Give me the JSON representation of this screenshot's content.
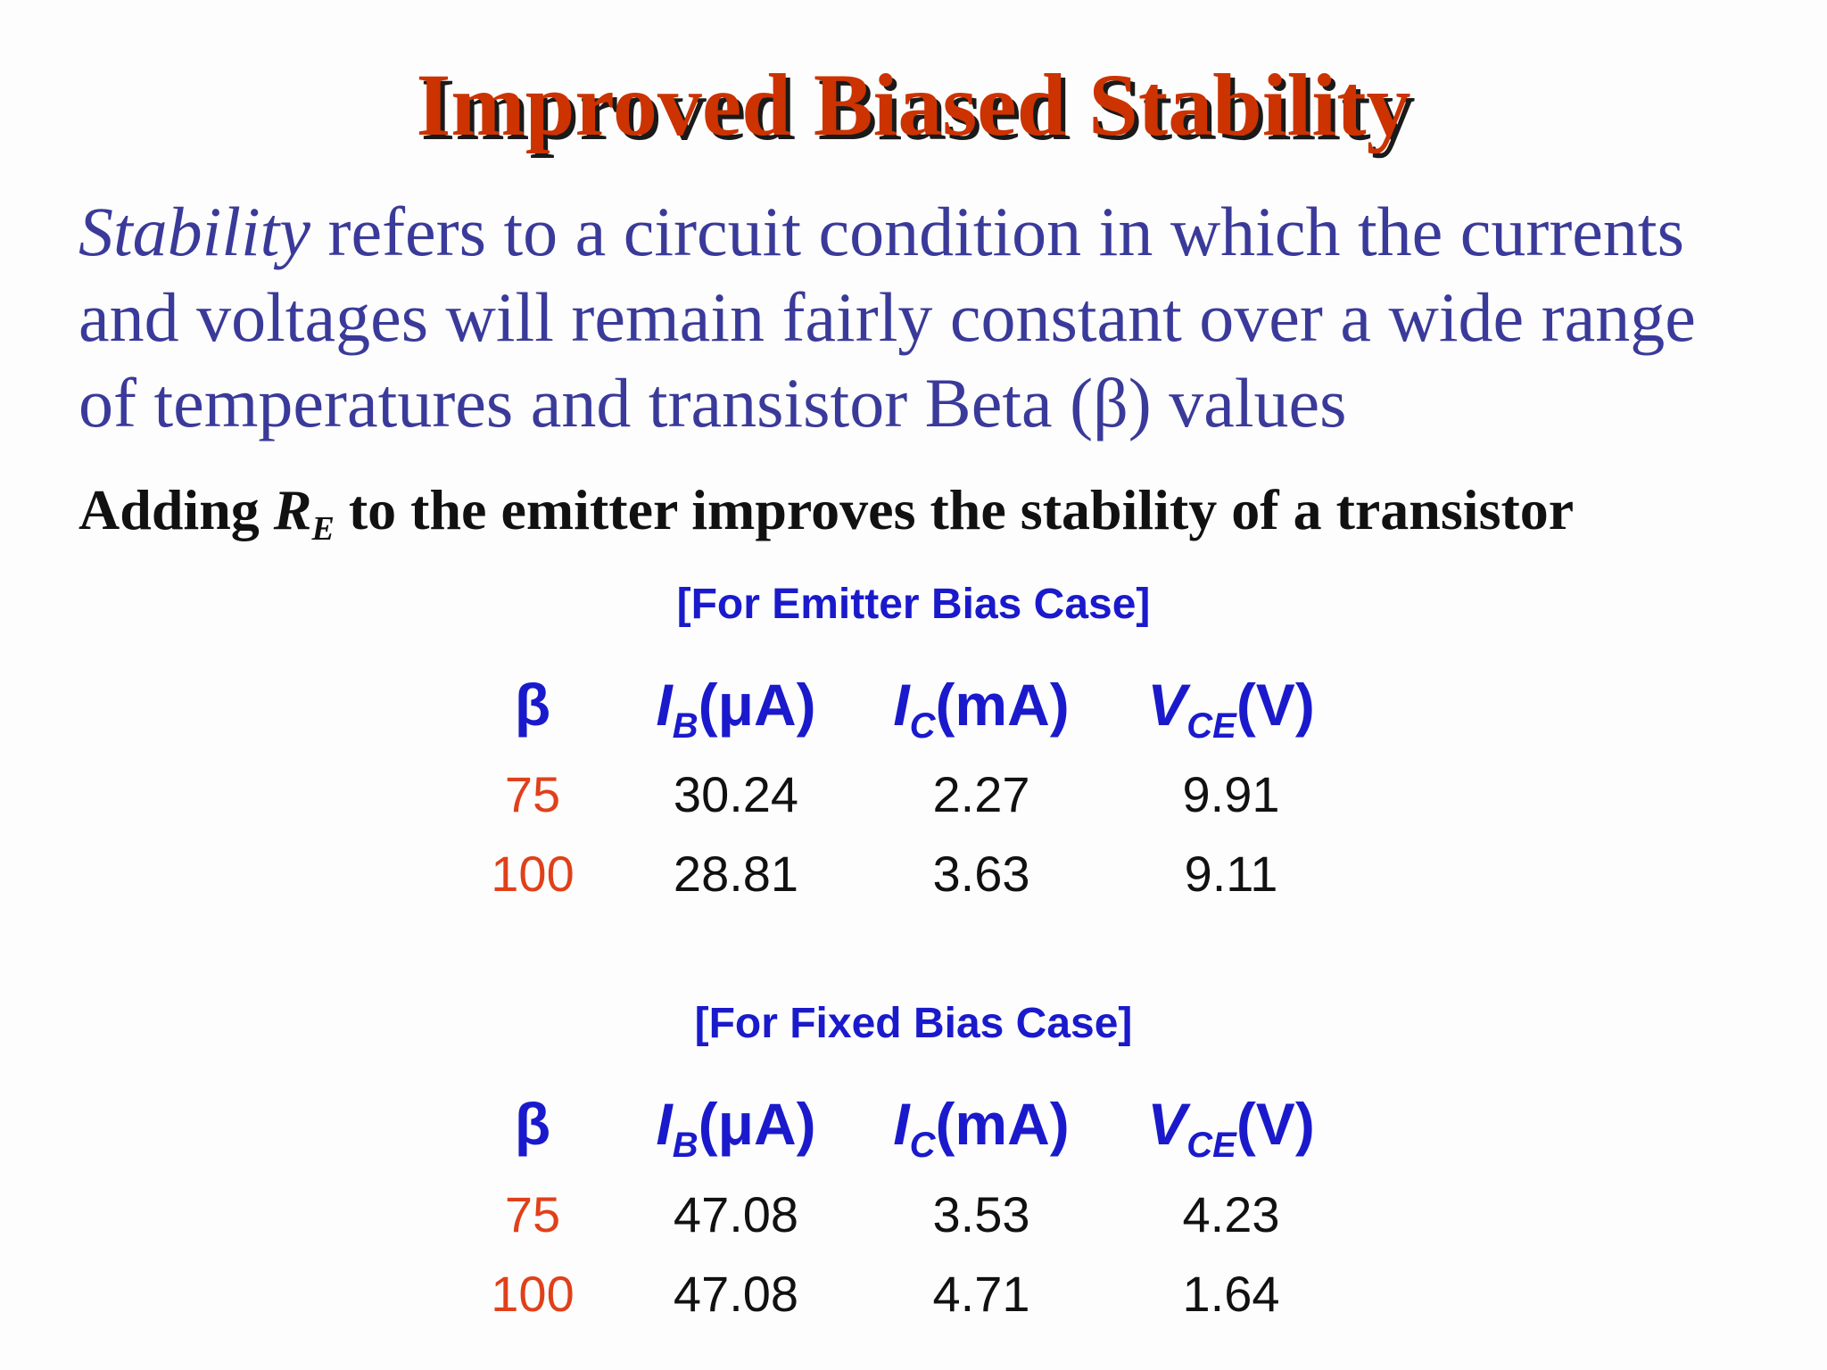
{
  "slide": {
    "title": "Improved Biased Stability",
    "paragraph": {
      "italic_word": "Stability",
      "line1_rest": " refers to a circuit condition in which the currents",
      "line2": "and voltages will remain fairly constant over a wide range",
      "line3": "of temperatures and transistor Beta (β) values"
    },
    "adding": {
      "before": "Adding ",
      "symbol": "R",
      "subscript": "E",
      "after": " to the emitter improves the stability of a transistor"
    }
  },
  "table_headers": {
    "beta": "β",
    "ib_sym": "I",
    "ib_sub": "B",
    "ib_unit": "(μA)",
    "ic_sym": "I",
    "ic_sub": "C",
    "ic_unit": "(mA)",
    "vce_sym": "V",
    "vce_sub": "CE",
    "vce_unit": "(V)"
  },
  "emitter_bias": {
    "caption": "[For Emitter Bias Case]",
    "rows": [
      {
        "beta": "75",
        "ib": "30.24",
        "ic": "2.27",
        "vce": "9.91"
      },
      {
        "beta": "100",
        "ib": "28.81",
        "ic": "3.63",
        "vce": "9.11"
      }
    ]
  },
  "fixed_bias": {
    "caption": "[For Fixed Bias Case]",
    "rows": [
      {
        "beta": "75",
        "ib": "47.08",
        "ic": "3.53",
        "vce": "4.23"
      },
      {
        "beta": "100",
        "ib": "47.08",
        "ic": "4.71",
        "vce": "1.64"
      }
    ]
  },
  "colors": {
    "title": "#cc3300",
    "paragraph": "#3a3a9a",
    "table_header": "#1a1acc",
    "beta_values": "#e0401a",
    "values": "#111111"
  }
}
